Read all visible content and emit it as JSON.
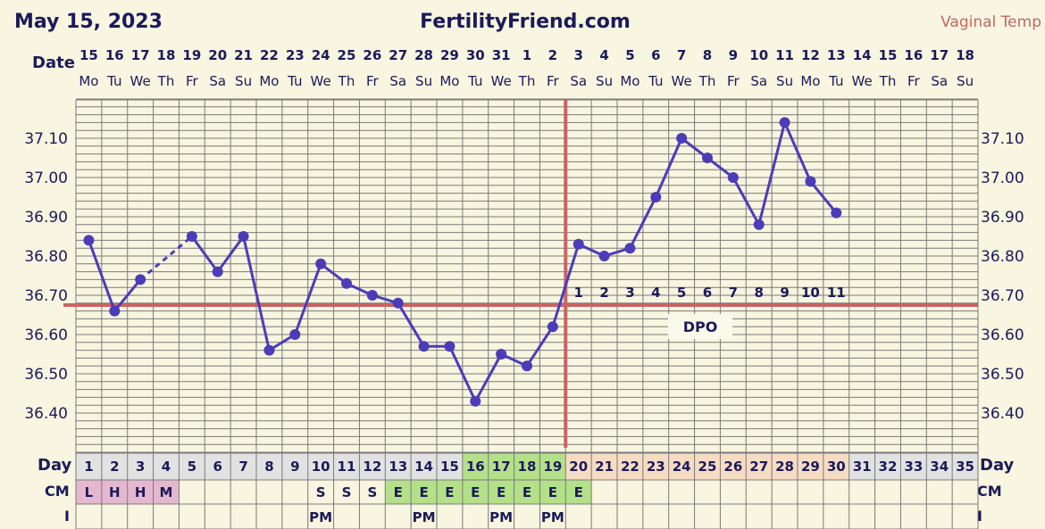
{
  "header": {
    "date": "May 15, 2023",
    "site": "FertilityFriend.com",
    "temp_label": "Vaginal Temp"
  },
  "colors": {
    "line": "#4b3cb8",
    "coverline": "#c86464",
    "grid": "#7a7a7a",
    "background": "#f8f5e0",
    "cm_low": "#e6b8cf",
    "cm_egg": "#b5e08a",
    "day_post_ov": "#f7dcc4",
    "day_default": "#e2e2e2"
  },
  "row_labels": {
    "date": "Date",
    "day": "Day",
    "cm": "CM",
    "intercourse": "I",
    "dpo": "DPO"
  },
  "chart_data": {
    "type": "line",
    "ylim": [
      36.3,
      37.2
    ],
    "y_ticks": [
      "37.10",
      "37.00",
      "36.90",
      "36.80",
      "36.70",
      "36.60",
      "36.50",
      "36.40"
    ],
    "coverline": 36.675,
    "ovulation_cycle_day": 19,
    "dates": [
      "15",
      "16",
      "17",
      "18",
      "19",
      "20",
      "21",
      "22",
      "23",
      "24",
      "25",
      "26",
      "27",
      "28",
      "29",
      "30",
      "31",
      "1",
      "2",
      "3",
      "4",
      "5",
      "6",
      "7",
      "8",
      "9",
      "10",
      "11",
      "12",
      "13",
      "14",
      "15",
      "16",
      "17",
      "18"
    ],
    "weekdays": [
      "Mo",
      "Tu",
      "We",
      "Th",
      "Fr",
      "Sa",
      "Su",
      "Mo",
      "Tu",
      "We",
      "Th",
      "Fr",
      "Sa",
      "Su",
      "Mo",
      "Tu",
      "We",
      "Th",
      "Fr",
      "Sa",
      "Su",
      "Mo",
      "Tu",
      "We",
      "Th",
      "Fr",
      "Sa",
      "Su",
      "Mo",
      "Tu",
      "We",
      "Th",
      "Fr",
      "Sa",
      "Su"
    ],
    "cycle_days": [
      "1",
      "2",
      "3",
      "4",
      "5",
      "6",
      "7",
      "8",
      "9",
      "10",
      "11",
      "12",
      "13",
      "14",
      "15",
      "16",
      "17",
      "18",
      "19",
      "20",
      "21",
      "22",
      "23",
      "24",
      "25",
      "26",
      "27",
      "28",
      "29",
      "30",
      "31",
      "32",
      "33",
      "34",
      "35"
    ],
    "temps": [
      36.84,
      36.66,
      36.74,
      null,
      36.85,
      36.76,
      36.85,
      36.56,
      36.6,
      36.78,
      36.73,
      36.7,
      36.68,
      36.57,
      36.57,
      36.43,
      36.55,
      36.52,
      36.62,
      36.83,
      36.8,
      36.82,
      36.95,
      37.1,
      37.05,
      37.0,
      36.88,
      37.14,
      36.99,
      36.91,
      null,
      null,
      null,
      null,
      null
    ],
    "dashed_segments": [
      [
        3,
        5
      ]
    ],
    "dpo_labels": [
      "1",
      "2",
      "3",
      "4",
      "5",
      "6",
      "7",
      "8",
      "9",
      "10",
      "11"
    ],
    "dpo_start_cycle_day": 20,
    "cm": [
      "L",
      "H",
      "H",
      "M",
      "",
      "",
      "",
      "",
      "",
      "S",
      "S",
      "S",
      "E",
      "E",
      "E",
      "E",
      "E",
      "E",
      "E",
      "E",
      "",
      "",
      "",
      "",
      "",
      "",
      "",
      "",
      "",
      "",
      "",
      "",
      "",
      "",
      ""
    ],
    "intercourse": [
      "",
      "",
      "",
      "",
      "",
      "",
      "",
      "",
      "",
      "PM",
      "",
      "",
      "",
      "PM",
      "",
      "",
      "PM",
      "",
      "PM",
      "",
      "",
      "",
      "",
      "",
      "",
      "",
      "",
      "",
      "",
      "",
      "",
      "",
      "",
      "",
      ""
    ],
    "highlight_days": [
      "16",
      "17",
      "18",
      "19"
    ]
  }
}
